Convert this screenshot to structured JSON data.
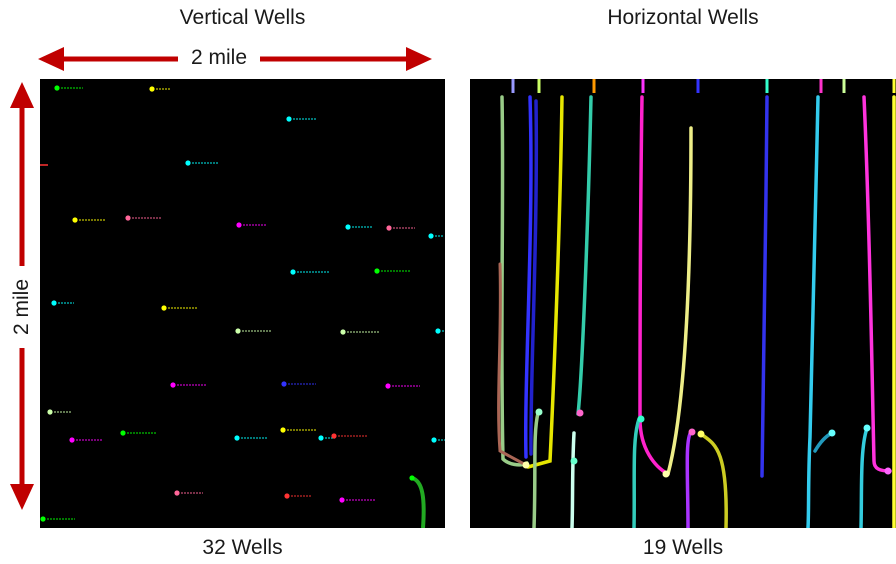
{
  "titles": {
    "left": "Vertical Wells",
    "right": "Horizontal Wells"
  },
  "scale": {
    "horizontal": "2 mile",
    "vertical": "2 mile"
  },
  "counts": {
    "left": "32 Wells",
    "right": "19 Wells"
  },
  "colors": {
    "arrow": "#c00000",
    "panel_background": "#000000",
    "well_palette": [
      "#ffff00",
      "#00ff00",
      "#00ffff",
      "#ff00ff",
      "#ff6699",
      "#3333ff",
      "#ff3333",
      "#ccffaa",
      "#aa33ff"
    ]
  }
}
